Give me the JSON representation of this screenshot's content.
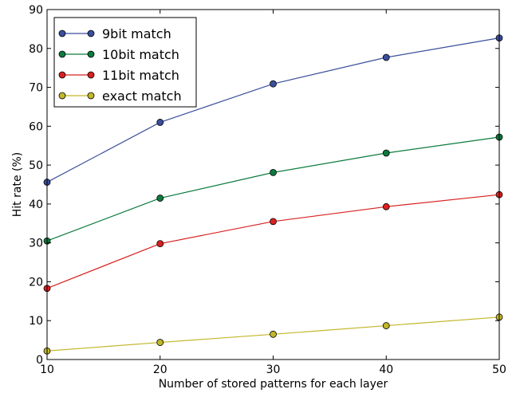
{
  "chart_data": {
    "type": "line",
    "title": "",
    "xlabel": "Number of stored patterns for each layer",
    "ylabel": "Hit rate (%)",
    "x": [
      10,
      20,
      30,
      40,
      50
    ],
    "xlim": [
      10,
      50
    ],
    "ylim": [
      0,
      90
    ],
    "xticks": [
      "10",
      "20",
      "30",
      "40",
      "50"
    ],
    "yticks": [
      "0",
      "10",
      "20",
      "30",
      "40",
      "50",
      "60",
      "70",
      "80",
      "90"
    ],
    "grid": false,
    "legend_position": "top-left",
    "series": [
      {
        "name": "9bit match",
        "color": "#3a4f9c",
        "values": [
          45.6,
          61.0,
          70.9,
          77.7,
          82.7
        ]
      },
      {
        "name": "10bit match",
        "color": "#0d7a3e",
        "values": [
          30.5,
          41.5,
          48.1,
          53.1,
          57.2
        ]
      },
      {
        "name": "11bit match",
        "color": "#d92020",
        "values": [
          18.3,
          29.8,
          35.5,
          39.3,
          42.4
        ]
      },
      {
        "name": "exact match",
        "color": "#c2b72a",
        "values": [
          2.2,
          4.4,
          6.5,
          8.7,
          10.9
        ]
      }
    ]
  }
}
